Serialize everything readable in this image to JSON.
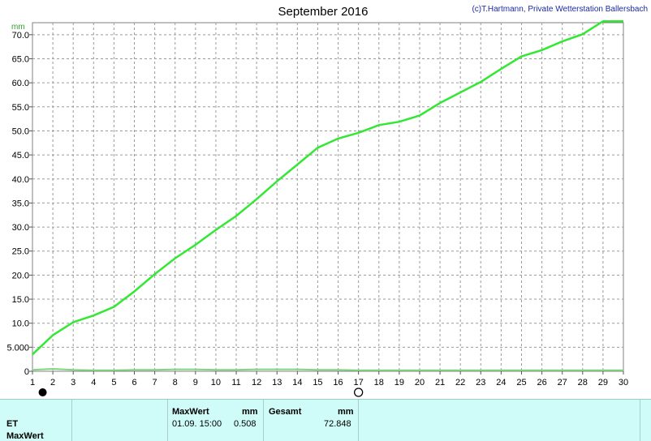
{
  "header": {
    "title": "September 2016",
    "copyright": "(c)T.Hartmann, Private Wetterstation Ballersbach",
    "unit": "mm"
  },
  "legend": {
    "label": "ET",
    "color": "#22dd22"
  },
  "chart_data": {
    "type": "line",
    "title": "September 2016",
    "ylabel": "mm",
    "xlim": [
      1,
      30
    ],
    "ylim": [
      0,
      72.5
    ],
    "x_ticks": [
      "1",
      "2",
      "3",
      "4",
      "5",
      "6",
      "7",
      "8",
      "9",
      "10",
      "11",
      "12",
      "13",
      "14",
      "15",
      "16",
      "17",
      "18",
      "19",
      "20",
      "21",
      "22",
      "23",
      "24",
      "25",
      "26",
      "27",
      "28",
      "29",
      "30"
    ],
    "y_ticks": [
      "0",
      "5.000",
      "10.0",
      "15.0",
      "20.0",
      "25.0",
      "30.0",
      "35.0",
      "40.0",
      "45.0",
      "50.0",
      "55.0",
      "60.0",
      "65.0",
      "70.0"
    ],
    "grid": true,
    "series": [
      {
        "name": "ET",
        "color": "#33e833",
        "x": [
          1,
          2,
          3,
          4,
          5,
          6,
          7,
          8,
          9,
          10,
          11,
          12,
          13,
          14,
          15,
          16,
          17,
          18,
          19,
          20,
          21,
          22,
          23,
          24,
          25,
          26,
          27,
          28,
          29,
          30
        ],
        "values": [
          3.5,
          7.5,
          10.2,
          11.6,
          13.4,
          16.6,
          20.2,
          23.5,
          26.3,
          29.4,
          32.3,
          35.8,
          39.5,
          43.0,
          46.5,
          48.4,
          49.6,
          51.2,
          51.9,
          53.2,
          55.8,
          58.0,
          60.2,
          62.9,
          65.5,
          66.8,
          68.6,
          70.1,
          72.8,
          72.8
        ]
      },
      {
        "name": "ET",
        "color": "#7ed67e",
        "x": [
          1,
          2,
          3,
          4,
          5,
          6,
          7,
          8,
          9,
          10,
          11,
          12,
          13,
          14,
          15,
          16,
          17,
          18,
          19,
          20,
          21,
          22,
          23,
          24,
          25,
          26,
          27,
          28,
          29,
          30
        ],
        "values": [
          0.3,
          0.5,
          0.3,
          0.2,
          0.2,
          0.3,
          0.3,
          0.4,
          0.4,
          0.3,
          0.3,
          0.4,
          0.4,
          0.4,
          0.3,
          0.3,
          0.2,
          0.2,
          0.2,
          0.2,
          0.2,
          0.2,
          0.2,
          0.2,
          0.2,
          0.2,
          0.2,
          0.2,
          0.2,
          0.2
        ]
      }
    ]
  },
  "table": {
    "row_label": "ET",
    "row_label2": "MaxWert",
    "max_header": "MaxWert",
    "max_unit": "mm",
    "max_time": "01.09.  15:00",
    "max_value": "0.508",
    "total_header": "Gesamt",
    "total_unit": "mm",
    "total_value": "72.848"
  }
}
